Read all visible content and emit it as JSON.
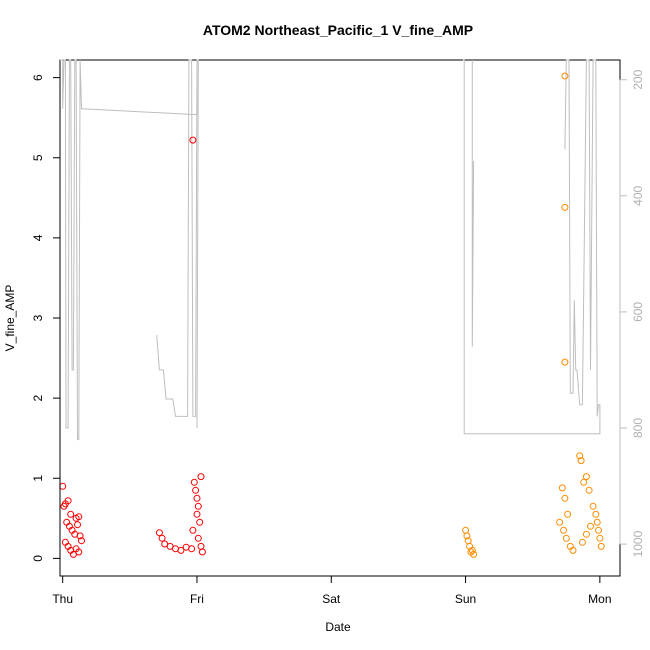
{
  "chart_data": {
    "type": "scatter",
    "title": "ATOM2 Northeast_Pacific_1 V_fine_AMP",
    "xlabel": "Date",
    "ylabel": "V_fine_AMP",
    "x_ticks": [
      "Thu",
      "Fri",
      "Sat",
      "Sun",
      "Mon"
    ],
    "y_ticks": [
      "0",
      "1",
      "2",
      "3",
      "4",
      "5",
      "6"
    ],
    "ylim": [
      -0.22,
      6.22
    ],
    "right_axis": {
      "ticks": [
        "200",
        "400",
        "600",
        "800",
        "1000"
      ],
      "range": [
        166,
        1055
      ],
      "reversed": true,
      "color": "#bebebe"
    },
    "xlim_days": [
      -0.02,
      4.15
    ],
    "grid": false,
    "series": [
      {
        "color": "#ff0000",
        "marker": "open-circle",
        "points": [
          [
            0.0,
            0.9
          ],
          [
            0.01,
            0.65
          ],
          [
            0.02,
            0.68
          ],
          [
            0.04,
            0.72
          ],
          [
            0.06,
            0.55
          ],
          [
            0.1,
            0.5
          ],
          [
            0.12,
            0.52
          ],
          [
            0.03,
            0.45
          ],
          [
            0.05,
            0.4
          ],
          [
            0.07,
            0.35
          ],
          [
            0.09,
            0.3
          ],
          [
            0.11,
            0.42
          ],
          [
            0.13,
            0.28
          ],
          [
            0.02,
            0.2
          ],
          [
            0.04,
            0.15
          ],
          [
            0.06,
            0.1
          ],
          [
            0.08,
            0.05
          ],
          [
            0.1,
            0.12
          ],
          [
            0.12,
            0.08
          ],
          [
            0.14,
            0.22
          ],
          [
            0.72,
            0.32
          ],
          [
            0.74,
            0.25
          ],
          [
            0.76,
            0.18
          ],
          [
            0.8,
            0.15
          ],
          [
            0.84,
            0.12
          ],
          [
            0.88,
            0.1
          ],
          [
            0.92,
            0.14
          ],
          [
            0.96,
            0.12
          ],
          [
            0.98,
            0.95
          ],
          [
            0.99,
            0.85
          ],
          [
            1.0,
            0.75
          ],
          [
            1.01,
            0.65
          ],
          [
            1.0,
            0.55
          ],
          [
            1.02,
            0.45
          ],
          [
            1.03,
            1.02
          ],
          [
            0.97,
            0.35
          ],
          [
            1.01,
            0.25
          ],
          [
            1.03,
            0.15
          ],
          [
            1.04,
            0.08
          ],
          [
            0.97,
            5.22
          ]
        ]
      },
      {
        "color": "#ff8c00",
        "marker": "open-circle",
        "points": [
          [
            3.0,
            0.35
          ],
          [
            3.01,
            0.28
          ],
          [
            3.02,
            0.22
          ],
          [
            3.03,
            0.15
          ],
          [
            3.05,
            0.1
          ],
          [
            3.06,
            0.05
          ],
          [
            3.04,
            0.08
          ],
          [
            3.72,
            0.88
          ],
          [
            3.74,
            0.75
          ],
          [
            3.76,
            0.55
          ],
          [
            3.7,
            0.45
          ],
          [
            3.73,
            0.35
          ],
          [
            3.75,
            0.25
          ],
          [
            3.78,
            0.15
          ],
          [
            3.8,
            0.1
          ],
          [
            3.85,
            1.28
          ],
          [
            3.86,
            1.22
          ],
          [
            3.88,
            0.95
          ],
          [
            3.9,
            1.02
          ],
          [
            3.92,
            0.85
          ],
          [
            3.95,
            0.65
          ],
          [
            3.97,
            0.55
          ],
          [
            3.98,
            0.45
          ],
          [
            3.99,
            0.35
          ],
          [
            4.0,
            0.25
          ],
          [
            4.01,
            0.15
          ],
          [
            3.93,
            0.4
          ],
          [
            3.9,
            0.3
          ],
          [
            3.87,
            0.2
          ],
          [
            3.74,
            6.02
          ],
          [
            3.74,
            4.38
          ],
          [
            3.74,
            2.45
          ]
        ]
      }
    ],
    "depth_line": {
      "color": "#bebebe",
      "segments": [
        [
          [
            -0.02,
            166
          ],
          [
            0.0,
            166
          ],
          [
            0.0,
            250
          ],
          [
            0.01,
            166
          ],
          [
            0.02,
            166
          ],
          [
            0.025,
            800
          ],
          [
            0.04,
            800
          ],
          [
            0.05,
            166
          ],
          [
            0.06,
            166
          ],
          [
            0.07,
            700
          ],
          [
            0.08,
            700
          ],
          [
            0.09,
            166
          ],
          [
            0.1,
            166
          ],
          [
            0.11,
            820
          ],
          [
            0.12,
            820
          ],
          [
            0.13,
            166
          ],
          [
            0.14,
            250
          ],
          [
            1.0,
            260
          ],
          [
            1.0,
            166
          ]
        ],
        [
          [
            0.7,
            640
          ],
          [
            0.72,
            700
          ],
          [
            0.75,
            700
          ],
          [
            0.77,
            750
          ],
          [
            0.82,
            750
          ],
          [
            0.84,
            780
          ],
          [
            0.93,
            780
          ],
          [
            0.94,
            166
          ],
          [
            0.96,
            166
          ],
          [
            0.97,
            780
          ],
          [
            0.99,
            780
          ],
          [
            1.0,
            166
          ],
          [
            1.01,
            166
          ],
          [
            1.0,
            800
          ]
        ],
        [
          [
            2.98,
            166
          ],
          [
            2.99,
            166
          ],
          [
            2.99,
            810
          ],
          [
            4.0,
            810
          ],
          [
            4.0,
            760
          ],
          [
            3.99,
            760
          ],
          [
            3.98,
            780
          ],
          [
            3.97,
            166
          ],
          [
            3.95,
            166
          ],
          [
            3.93,
            700
          ],
          [
            3.92,
            166
          ],
          [
            3.9,
            166
          ],
          [
            3.87,
            760
          ],
          [
            3.85,
            760
          ],
          [
            3.83,
            700
          ],
          [
            3.82,
            700
          ],
          [
            3.81,
            580
          ],
          [
            3.8,
            740
          ],
          [
            3.78,
            740
          ],
          [
            3.77,
            166
          ],
          [
            3.75,
            166
          ],
          [
            3.74,
            320
          ]
        ],
        [
          [
            3.05,
            166
          ],
          [
            3.05,
            660
          ],
          [
            3.06,
            340
          ]
        ]
      ]
    }
  }
}
